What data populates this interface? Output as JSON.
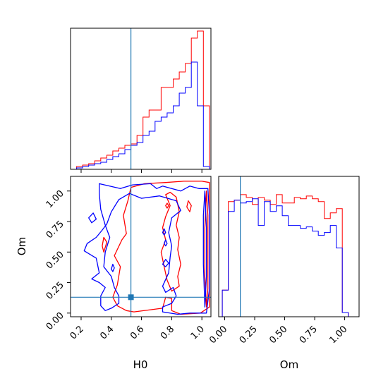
{
  "chart_data": {
    "type": "corner",
    "parameters": [
      "H0",
      "Om"
    ],
    "truth": {
      "H0": 0.53,
      "Om": 0.13
    },
    "colors": {
      "red": "#ff0000",
      "blue": "#0000ff",
      "truth": "#1f77b4",
      "axis": "#000000"
    },
    "panels": [
      {
        "id": "hist-H0",
        "type": "step-histogram",
        "xlim": [
          0.13,
          1.06
        ],
        "ylim": [
          0,
          1.0
        ],
        "x_ticks": [
          0.2,
          0.4,
          0.6,
          0.8,
          1.0
        ],
        "x_tick_labels": [],
        "bin_edges": [
          0.13,
          0.17,
          0.21,
          0.25,
          0.29,
          0.33,
          0.37,
          0.41,
          0.45,
          0.49,
          0.53,
          0.57,
          0.61,
          0.65,
          0.69,
          0.73,
          0.77,
          0.81,
          0.85,
          0.89,
          0.93,
          0.97,
          1.01,
          1.05
        ],
        "series": [
          {
            "color": "#ff0000",
            "values": [
              0.0,
              0.02,
              0.03,
              0.04,
              0.06,
              0.08,
              0.1,
              0.13,
              0.15,
              0.17,
              0.18,
              0.24,
              0.37,
              0.42,
              0.42,
              0.58,
              0.58,
              0.64,
              0.69,
              0.75,
              0.93,
              0.98,
              0.45
            ]
          },
          {
            "color": "#0000ff",
            "values": [
              0.0,
              0.01,
              0.02,
              0.03,
              0.04,
              0.05,
              0.07,
              0.09,
              0.11,
              0.14,
              0.17,
              0.19,
              0.24,
              0.27,
              0.34,
              0.37,
              0.4,
              0.45,
              0.54,
              0.58,
              0.76,
              0.45,
              0.02
            ]
          }
        ]
      },
      {
        "id": "contour-H0-Om",
        "type": "contour",
        "xlim": [
          0.13,
          1.06
        ],
        "ylim": [
          -0.03,
          1.12
        ],
        "x_ticks": [
          0.2,
          0.4,
          0.6,
          0.8,
          1.0
        ],
        "x_tick_labels": [
          "0.2",
          "0.4",
          "0.6",
          "0.8",
          "1.0"
        ],
        "y_ticks": [
          0.0,
          0.25,
          0.5,
          0.75,
          1.0
        ],
        "y_tick_labels": [
          "0.00",
          "0.25",
          "0.50",
          "0.75",
          "1.00"
        ],
        "xlabel": "H0",
        "ylabel": "Om",
        "series": [
          {
            "color": "#ff0000",
            "contours": [
              [
                [
                  0.53,
                  1.03
                ],
                [
                  0.62,
                  1.06
                ],
                [
                  0.76,
                  1.07
                ],
                [
                  0.88,
                  1.08
                ],
                [
                  1.0,
                  1.08
                ],
                [
                  1.05,
                  1.07
                ],
                [
                  1.05,
                  0.9
                ],
                [
                  1.05,
                  0.5
                ],
                [
                  1.05,
                  0.05
                ],
                [
                  0.99,
                  0.0
                ],
                [
                  0.86,
                  -0.01
                ],
                [
                  0.8,
                  0.02
                ],
                [
                  0.8,
                  0.12
                ],
                [
                  0.76,
                  0.13
                ],
                [
                  0.74,
                  0.04
                ],
                [
                  0.55,
                  0.01
                ],
                [
                  0.5,
                  0.02
                ],
                [
                  0.44,
                  0.06
                ],
                [
                  0.41,
                  0.13
                ],
                [
                  0.44,
                  0.23
                ],
                [
                  0.46,
                  0.38
                ],
                [
                  0.42,
                  0.47
                ],
                [
                  0.47,
                  0.6
                ],
                [
                  0.5,
                  0.65
                ],
                [
                  0.48,
                  0.8
                ],
                [
                  0.51,
                  0.92
                ],
                [
                  0.53,
                  1.03
                ]
              ],
              [
                [
                  0.76,
                  0.97
                ],
                [
                  0.79,
                  0.88
                ],
                [
                  0.76,
                  0.79
                ],
                [
                  0.74,
                  0.7
                ],
                [
                  0.76,
                  0.6
                ],
                [
                  0.73,
                  0.5
                ],
                [
                  0.75,
                  0.38
                ],
                [
                  0.77,
                  0.27
                ],
                [
                  0.8,
                  0.18
                ],
                [
                  0.85,
                  0.22
                ],
                [
                  0.84,
                  0.3
                ],
                [
                  0.86,
                  0.4
                ],
                [
                  0.84,
                  0.52
                ],
                [
                  0.85,
                  0.62
                ],
                [
                  0.83,
                  0.72
                ],
                [
                  0.85,
                  0.83
                ],
                [
                  0.83,
                  0.95
                ],
                [
                  0.79,
                  0.99
                ],
                [
                  0.76,
                  0.97
                ]
              ],
              [
                [
                  0.91,
                  0.92
                ],
                [
                  0.93,
                  0.88
                ],
                [
                  0.92,
                  0.83
                ],
                [
                  0.9,
                  0.87
                ],
                [
                  0.91,
                  0.92
                ]
              ],
              [
                [
                  0.77,
                  0.9
                ],
                [
                  0.78,
                  0.88
                ],
                [
                  0.77,
                  0.86
                ],
                [
                  0.76,
                  0.88
                ],
                [
                  0.77,
                  0.9
                ]
              ],
              [
                [
                  0.35,
                  0.62
                ],
                [
                  0.37,
                  0.58
                ],
                [
                  0.35,
                  0.5
                ],
                [
                  0.34,
                  0.55
                ],
                [
                  0.35,
                  0.62
                ]
              ],
              [
                [
                  1.03,
                  1.0
                ],
                [
                  1.04,
                  0.8
                ],
                [
                  1.04,
                  0.5
                ],
                [
                  1.04,
                  0.2
                ],
                [
                  1.03,
                  0.05
                ],
                [
                  1.02,
                  0.3
                ],
                [
                  1.02,
                  0.7
                ],
                [
                  1.03,
                  1.0
                ]
              ]
            ]
          },
          {
            "color": "#0000ff",
            "contours": [
              [
                [
                  0.32,
                  1.06
                ],
                [
                  0.46,
                  1.02
                ],
                [
                  0.54,
                  1.05
                ],
                [
                  0.66,
                  1.06
                ],
                [
                  0.7,
                  1.02
                ],
                [
                  0.74,
                  1.04
                ],
                [
                  0.86,
                  1.0
                ],
                [
                  0.92,
                  1.04
                ],
                [
                  0.98,
                  1.02
                ],
                [
                  1.04,
                  1.02
                ],
                [
                  1.05,
                  0.8
                ],
                [
                  1.05,
                  0.2
                ],
                [
                  1.03,
                  0.0
                ],
                [
                  0.92,
                  0.0
                ],
                [
                  0.84,
                  -0.01
                ],
                [
                  0.74,
                  0.01
                ],
                [
                  0.74,
                  0.05
                ],
                [
                  0.8,
                  0.08
                ],
                [
                  0.83,
                  0.14
                ],
                [
                  0.81,
                  0.21
                ],
                [
                  0.76,
                  0.17
                ],
                [
                  0.74,
                  0.22
                ],
                [
                  0.78,
                  0.33
                ],
                [
                  0.79,
                  0.46
                ],
                [
                  0.8,
                  0.55
                ],
                [
                  0.78,
                  0.66
                ],
                [
                  0.8,
                  0.78
                ],
                [
                  0.86,
                  0.84
                ],
                [
                  0.83,
                  0.92
                ],
                [
                  0.72,
                  0.96
                ],
                [
                  0.6,
                  0.94
                ],
                [
                  0.52,
                  0.98
                ],
                [
                  0.45,
                  0.93
                ],
                [
                  0.4,
                  0.83
                ],
                [
                  0.37,
                  0.73
                ],
                [
                  0.34,
                  0.68
                ],
                [
                  0.3,
                  0.62
                ],
                [
                  0.24,
                  0.57
                ],
                [
                  0.22,
                  0.51
                ],
                [
                  0.3,
                  0.45
                ],
                [
                  0.32,
                  0.33
                ],
                [
                  0.27,
                  0.28
                ],
                [
                  0.32,
                  0.25
                ],
                [
                  0.36,
                  0.21
                ],
                [
                  0.33,
                  0.14
                ],
                [
                  0.33,
                  0.06
                ],
                [
                  0.36,
                  0.02
                ],
                [
                  0.4,
                  0.04
                ],
                [
                  0.45,
                  0.08
                ],
                [
                  0.45,
                  0.14
                ],
                [
                  0.42,
                  0.21
                ],
                [
                  0.4,
                  0.3
                ],
                [
                  0.35,
                  0.38
                ],
                [
                  0.36,
                  0.5
                ],
                [
                  0.39,
                  0.62
                ],
                [
                  0.36,
                  0.72
                ],
                [
                  0.33,
                  0.85
                ],
                [
                  0.32,
                  0.98
                ],
                [
                  0.32,
                  1.06
                ]
              ],
              [
                [
                  0.25,
                  0.78
                ],
                [
                  0.28,
                  0.82
                ],
                [
                  0.3,
                  0.77
                ],
                [
                  0.27,
                  0.74
                ],
                [
                  0.25,
                  0.78
                ]
              ],
              [
                [
                  0.4,
                  0.36
                ],
                [
                  0.41,
                  0.4
                ],
                [
                  0.42,
                  0.37
                ],
                [
                  0.41,
                  0.34
                ],
                [
                  0.4,
                  0.36
                ]
              ],
              [
                [
                  0.75,
                  0.57
                ],
                [
                  0.76,
                  0.6
                ],
                [
                  0.77,
                  0.57
                ],
                [
                  0.76,
                  0.55
                ],
                [
                  0.75,
                  0.57
                ]
              ],
              [
                [
                  0.74,
                  0.4
                ],
                [
                  0.76,
                  0.44
                ],
                [
                  0.78,
                  0.41
                ],
                [
                  0.76,
                  0.38
                ],
                [
                  0.74,
                  0.4
                ]
              ],
              [
                [
                  0.74,
                  0.66
                ],
                [
                  0.75,
                  0.69
                ],
                [
                  0.76,
                  0.66
                ],
                [
                  0.75,
                  0.64
                ],
                [
                  0.74,
                  0.66
                ]
              ],
              [
                [
                  1.02,
                  1.0
                ],
                [
                  1.03,
                  0.7
                ],
                [
                  1.03,
                  0.3
                ],
                [
                  1.02,
                  0.05
                ],
                [
                  1.01,
                  0.4
                ],
                [
                  1.01,
                  0.8
                ],
                [
                  1.02,
                  1.0
                ]
              ]
            ]
          }
        ]
      },
      {
        "id": "hist-Om",
        "type": "step-histogram",
        "xlim": [
          -0.05,
          1.12
        ],
        "ylim": [
          0,
          1.0
        ],
        "x_ticks": [
          0.0,
          0.25,
          0.5,
          0.75,
          1.0
        ],
        "x_tick_labels": [
          "0.00",
          "0.25",
          "0.50",
          "0.75",
          "1.00"
        ],
        "xlabel": "Om",
        "bin_edges": [
          -0.02,
          0.03,
          0.08,
          0.13,
          0.18,
          0.23,
          0.28,
          0.33,
          0.38,
          0.43,
          0.48,
          0.53,
          0.58,
          0.63,
          0.68,
          0.73,
          0.78,
          0.83,
          0.88,
          0.93,
          0.98,
          1.03
        ],
        "series": [
          {
            "color": "#ff0000",
            "values": [
              0.19,
              0.82,
              0.83,
              0.87,
              0.85,
              0.8,
              0.85,
              0.83,
              0.8,
              0.87,
              0.81,
              0.81,
              0.85,
              0.84,
              0.86,
              0.84,
              0.82,
              0.7,
              0.74,
              0.77,
              0.03
            ]
          },
          {
            "color": "#0000ff",
            "values": [
              0.19,
              0.75,
              0.83,
              0.81,
              0.82,
              0.84,
              0.65,
              0.82,
              0.75,
              0.79,
              0.72,
              0.65,
              0.65,
              0.63,
              0.64,
              0.61,
              0.58,
              0.6,
              0.65,
              0.49,
              0.03
            ]
          }
        ]
      }
    ]
  }
}
